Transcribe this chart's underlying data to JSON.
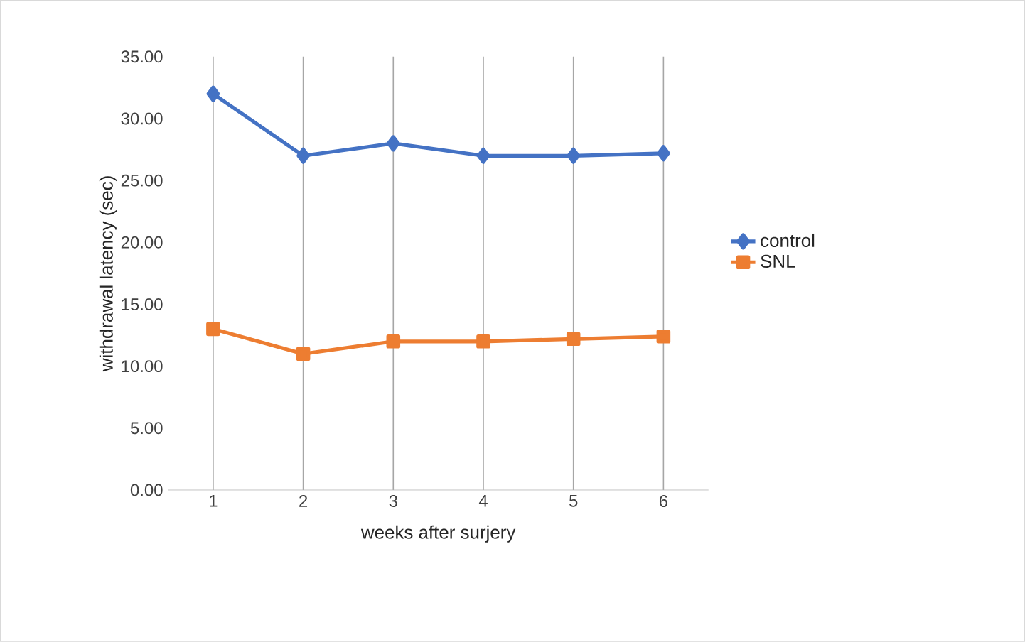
{
  "chart_data": {
    "type": "line",
    "xlabel": "weeks after surjery",
    "ylabel": "withdrawal latency (sec)",
    "categories": [
      "1",
      "2",
      "3",
      "4",
      "5",
      "6"
    ],
    "series": [
      {
        "name": "control",
        "color": "#4472c4",
        "marker": "diamond",
        "values": [
          32,
          27,
          28,
          27,
          27,
          27.2
        ]
      },
      {
        "name": "SNL",
        "color": "#ed7d31",
        "marker": "square",
        "values": [
          13,
          11,
          12,
          12,
          12.2,
          12.4
        ]
      }
    ],
    "ylim": [
      0,
      35
    ],
    "yticks": [
      {
        "value": 0,
        "label": "0.00"
      },
      {
        "value": 5,
        "label": "5.00"
      },
      {
        "value": 10,
        "label": "10.00"
      },
      {
        "value": 15,
        "label": "15.00"
      },
      {
        "value": 20,
        "label": "20.00"
      },
      {
        "value": 25,
        "label": "25.00"
      },
      {
        "value": 30,
        "label": "30.00"
      },
      {
        "value": 35,
        "label": "35.00"
      }
    ],
    "grid": "x",
    "legend": "right"
  }
}
